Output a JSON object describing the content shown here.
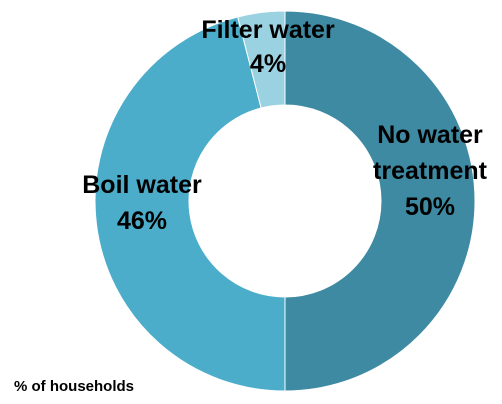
{
  "chart_data": {
    "type": "pie",
    "donut": true,
    "categories": [
      "No water treatment",
      "Boil water",
      "Filter water"
    ],
    "values": [
      50,
      46,
      4
    ],
    "value_labels": [
      "50%",
      "46%",
      "4%"
    ],
    "colors": [
      "#3e8aa2",
      "#4badca",
      "#9bd2e1"
    ],
    "label_lines": [
      [
        "No water",
        "treatment",
        "50%"
      ],
      [
        "Boil water",
        "46%"
      ],
      [
        "Filter water",
        "4%"
      ]
    ],
    "footnote": "% of households",
    "legend": "none"
  }
}
